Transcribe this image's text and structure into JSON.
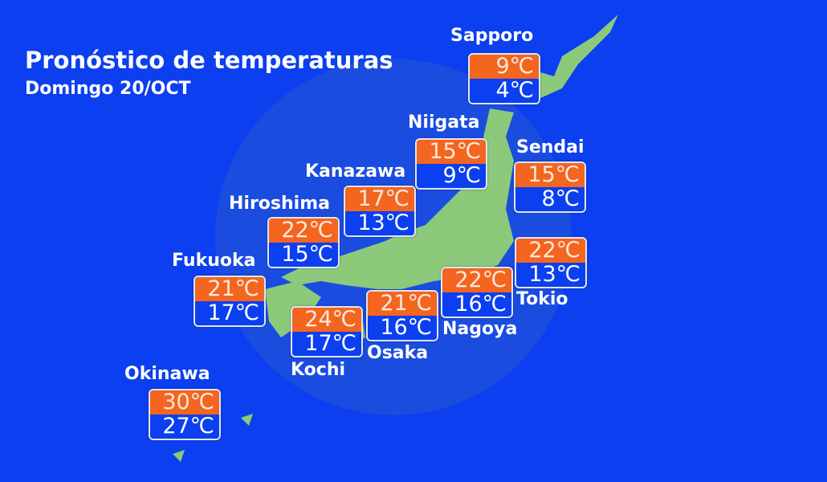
{
  "title": "Pronóstico de temperaturas",
  "subtitle": "Domingo 20/OCT",
  "colors": {
    "background": "#0b3ff0",
    "high": "#f4651f",
    "low": "#0b3ff0",
    "land": "#8cc97a"
  },
  "cities": [
    {
      "name": "Sapporo",
      "high": "9℃",
      "low": "4℃"
    },
    {
      "name": "Niigata",
      "high": "15℃",
      "low": "9℃"
    },
    {
      "name": "Sendai",
      "high": "15℃",
      "low": "8℃"
    },
    {
      "name": "Kanazawa",
      "high": "17℃",
      "low": "13℃"
    },
    {
      "name": "Hiroshima",
      "high": "22℃",
      "low": "15℃"
    },
    {
      "name": "Fukuoka",
      "high": "21℃",
      "low": "17℃"
    },
    {
      "name": "Tokio",
      "high": "22℃",
      "low": "13℃"
    },
    {
      "name": "Nagoya",
      "high": "22℃",
      "low": "16℃"
    },
    {
      "name": "Osaka",
      "high": "21℃",
      "low": "16℃"
    },
    {
      "name": "Kochi",
      "high": "24℃",
      "low": "17℃"
    },
    {
      "name": "Okinawa",
      "high": "30℃",
      "low": "27℃"
    }
  ]
}
